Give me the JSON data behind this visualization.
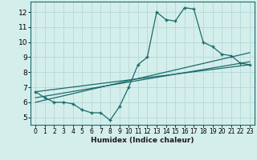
{
  "xlabel": "Humidex (Indice chaleur)",
  "ylabel": "",
  "background_color": "#d4eeec",
  "grid_color": "#b8dcd9",
  "line_color": "#1a6b6b",
  "xlim": [
    -0.5,
    23.5
  ],
  "ylim": [
    4.5,
    12.7
  ],
  "yticks": [
    5,
    6,
    7,
    8,
    9,
    10,
    11,
    12
  ],
  "xticks": [
    0,
    1,
    2,
    3,
    4,
    5,
    6,
    7,
    8,
    9,
    10,
    11,
    12,
    13,
    14,
    15,
    16,
    17,
    18,
    19,
    20,
    21,
    22,
    23
  ],
  "series1_x": [
    0,
    1,
    2,
    3,
    4,
    5,
    6,
    7,
    8,
    9,
    10,
    11,
    12,
    13,
    14,
    15,
    16,
    17,
    18,
    19,
    20,
    21,
    22,
    23
  ],
  "series1_y": [
    6.7,
    6.3,
    6.0,
    6.0,
    5.9,
    5.5,
    5.3,
    5.3,
    4.8,
    5.7,
    7.0,
    8.5,
    9.0,
    12.0,
    11.5,
    11.4,
    12.3,
    12.2,
    10.0,
    9.7,
    9.2,
    9.1,
    8.6,
    8.5
  ],
  "line1_x": [
    0,
    23
  ],
  "line1_y": [
    6.7,
    8.5
  ],
  "line2_x": [
    0,
    23
  ],
  "line2_y": [
    6.0,
    9.3
  ],
  "line3_x": [
    0,
    23
  ],
  "line3_y": [
    6.3,
    8.7
  ]
}
